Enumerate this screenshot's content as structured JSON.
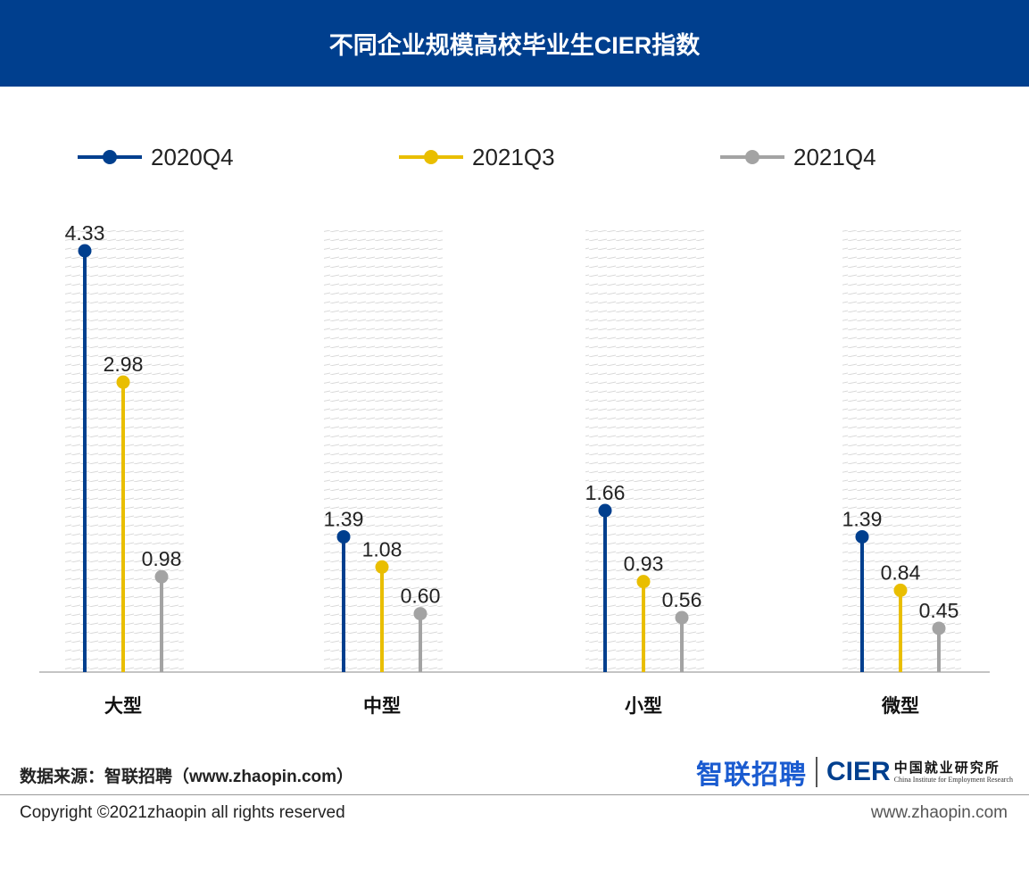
{
  "header": {
    "title": "不同企业规模高校毕业生CIER指数"
  },
  "chart_data": {
    "type": "lollipop",
    "title": "不同企业规模高校毕业生CIER指数",
    "categories": [
      "大型",
      "中型",
      "小型",
      "微型"
    ],
    "series": [
      {
        "name": "2020Q4",
        "color": "#003f8e",
        "values": [
          4.33,
          1.39,
          1.66,
          1.39
        ]
      },
      {
        "name": "2021Q3",
        "color": "#e9be00",
        "values": [
          2.98,
          1.08,
          0.93,
          0.84
        ]
      },
      {
        "name": "2021Q4",
        "color": "#a3a3a3",
        "values": [
          0.98,
          0.6,
          0.56,
          0.45
        ]
      }
    ],
    "value_labels": [
      [
        "4.33",
        "1.39",
        "1.66",
        "1.39"
      ],
      [
        "2.98",
        "1.08",
        "0.93",
        "0.84"
      ],
      [
        "0.98",
        "0.60",
        "0.56",
        "0.45"
      ]
    ],
    "ylim": [
      0,
      4.33
    ],
    "grid": false,
    "legend_position": "top"
  },
  "footer": {
    "source": "数据来源：智联招聘（www.zhaopin.com）",
    "brand_zhilian": "智联招聘",
    "brand_cier": "CIER",
    "brand_cn": "中国就业研究所",
    "brand_en": "China Institute for Employment Research",
    "copyright": "Copyright ©2021zhaopin all rights reserved",
    "website": "www.zhaopin.com"
  }
}
